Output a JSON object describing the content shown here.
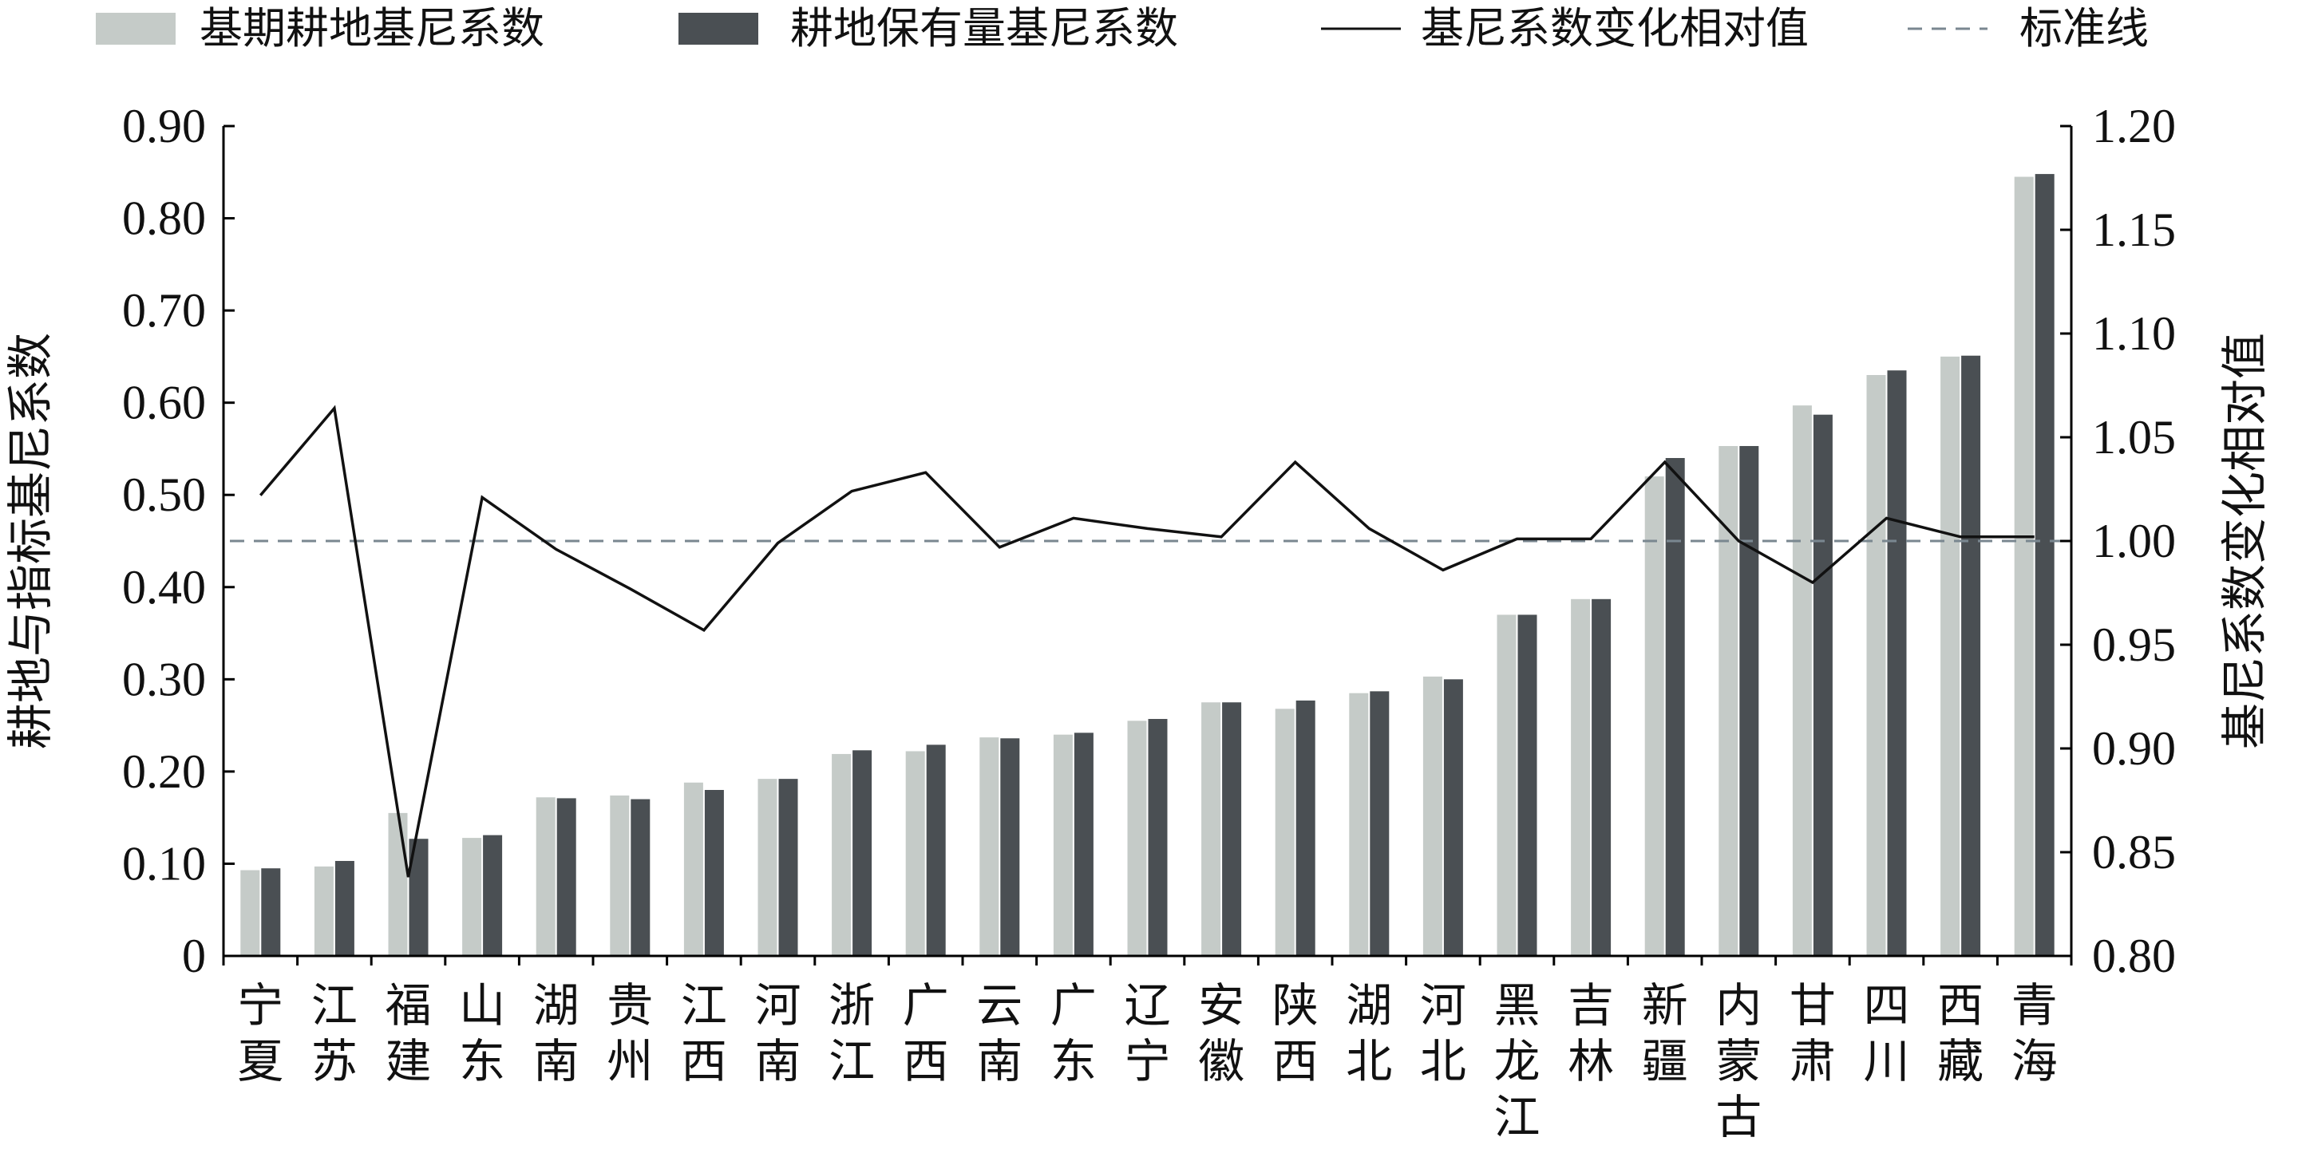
{
  "chart_data": {
    "type": "bar",
    "categories": [
      "宁夏",
      "江苏",
      "福建",
      "山东",
      "湖南",
      "贵州",
      "江西",
      "河南",
      "浙江",
      "广西",
      "云南",
      "广东",
      "辽宁",
      "安徽",
      "陕西",
      "湖北",
      "河北",
      "黑龙江",
      "吉林",
      "新疆",
      "内蒙古",
      "甘肃",
      "四川",
      "西藏",
      "青海"
    ],
    "category_lines": [
      [
        "宁",
        "夏"
      ],
      [
        "江",
        "苏"
      ],
      [
        "福",
        "建"
      ],
      [
        "山",
        "东"
      ],
      [
        "湖",
        "南"
      ],
      [
        "贵",
        "州"
      ],
      [
        "江",
        "西"
      ],
      [
        "河",
        "南"
      ],
      [
        "浙",
        "江"
      ],
      [
        "广",
        "西"
      ],
      [
        "云",
        "南"
      ],
      [
        "广",
        "东"
      ],
      [
        "辽",
        "宁"
      ],
      [
        "安",
        "徽"
      ],
      [
        "陕",
        "西"
      ],
      [
        "湖",
        "北"
      ],
      [
        "河",
        "北"
      ],
      [
        "黑",
        "龙",
        "江"
      ],
      [
        "吉",
        "林"
      ],
      [
        "新",
        "疆"
      ],
      [
        "内",
        "蒙",
        "古"
      ],
      [
        "甘",
        "肃"
      ],
      [
        "四",
        "川"
      ],
      [
        "西",
        "藏"
      ],
      [
        "青",
        "海"
      ]
    ],
    "series": [
      {
        "name": "基期耕地基尼系数",
        "axis": "left",
        "type": "bar",
        "color": "#c5cbc8",
        "values": [
          0.093,
          0.097,
          0.155,
          0.128,
          0.172,
          0.174,
          0.188,
          0.192,
          0.219,
          0.222,
          0.237,
          0.24,
          0.255,
          0.275,
          0.268,
          0.285,
          0.303,
          0.37,
          0.387,
          0.52,
          0.553,
          0.597,
          0.63,
          0.65,
          0.845
        ]
      },
      {
        "name": "耕地保有量基尼系数",
        "axis": "left",
        "type": "bar",
        "color": "#4a4f53",
        "values": [
          0.095,
          0.103,
          0.127,
          0.131,
          0.171,
          0.17,
          0.18,
          0.192,
          0.223,
          0.229,
          0.236,
          0.242,
          0.257,
          0.275,
          0.277,
          0.287,
          0.3,
          0.37,
          0.387,
          0.54,
          0.553,
          0.587,
          0.635,
          0.651,
          0.848
        ]
      },
      {
        "name": "基尼系数变化相对值",
        "axis": "right",
        "type": "line",
        "color": "#111111",
        "values": [
          1.022,
          1.064,
          0.838,
          1.021,
          0.996,
          0.977,
          0.957,
          0.999,
          1.024,
          1.033,
          0.997,
          1.011,
          1.006,
          1.002,
          1.038,
          1.006,
          0.986,
          1.001,
          1.001,
          1.038,
          1.0,
          0.98,
          1.011,
          1.002,
          1.002
        ]
      },
      {
        "name": "标准线",
        "axis": "right",
        "type": "reference",
        "color": "#7a8790",
        "value": 1.0
      }
    ],
    "ylabel": "耕地与指标基尼系数",
    "y2label": "基尼系数变化相对值",
    "ylim": [
      0,
      0.9
    ],
    "y2lim": [
      0.8,
      1.2
    ],
    "yticks": [
      "0",
      "0.10",
      "0.20",
      "0.30",
      "0.40",
      "0.50",
      "0.60",
      "0.70",
      "0.80",
      "0.90"
    ],
    "y2ticks": [
      "0.80",
      "0.85",
      "0.90",
      "0.95",
      "1.00",
      "1.05",
      "1.10",
      "1.15",
      "1.20"
    ],
    "grid": false,
    "legend_position": "top"
  }
}
